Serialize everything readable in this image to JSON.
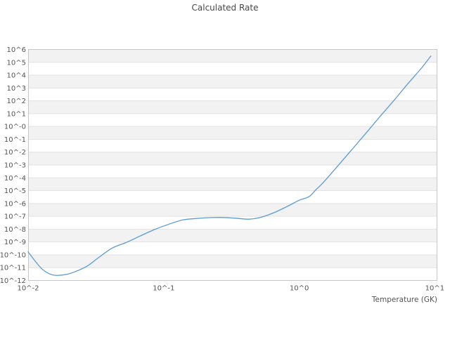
{
  "colors": {
    "line": "#5b9bd5",
    "band": "#f2f2f2",
    "grid": "#e2e2e2",
    "frame": "#c6c6c6",
    "text": "#545454"
  },
  "chart_data": {
    "type": "line",
    "title": "Calculated Rate",
    "xlabel": "Temperature (GK)",
    "ylabel": "",
    "x_scale": "log",
    "y_scale": "log",
    "xlim": [
      0.01,
      10.2
    ],
    "ylim": [
      1e-12,
      1000000.0
    ],
    "grid": "horizontal gridlines with alternating gray/white decade bands, no vertical gridlines",
    "legend": "none",
    "x_tick_labels": [
      "10^-2",
      "10^-1",
      "10^0",
      "10^1"
    ],
    "x_tick_values": [
      0.01,
      0.1,
      1,
      10
    ],
    "y_tick_labels": [
      "10^6",
      "10^5",
      "10^4",
      "10^3",
      "10^2",
      "10^1",
      "10^-0",
      "10^-1",
      "10^-2",
      "10^-3",
      "10^-4",
      "10^-5",
      "10^-6",
      "10^-7",
      "10^-8",
      "10^-9",
      "10^-10",
      "10^-11",
      "10^-12"
    ],
    "y_tick_exponents": [
      6,
      5,
      4,
      3,
      2,
      1,
      0,
      -1,
      -2,
      -3,
      -4,
      -5,
      -6,
      -7,
      -8,
      -9,
      -10,
      -11,
      -12
    ],
    "series": [
      {
        "name": "calculated-rate",
        "color": "#5b9bd5",
        "points": [
          [
            0.01,
            1.7e-10
          ],
          [
            0.0113,
            3.1e-11
          ],
          [
            0.0127,
            7.7e-12
          ],
          [
            0.0143,
            3.4e-12
          ],
          [
            0.0161,
            2.5e-12
          ],
          [
            0.0193,
            3e-12
          ],
          [
            0.023,
            5.6e-12
          ],
          [
            0.0275,
            1.4e-11
          ],
          [
            0.0329,
            5.8e-11
          ],
          [
            0.0418,
            3.4e-10
          ],
          [
            0.0531,
            9.3e-10
          ],
          [
            0.0674,
            3e-09
          ],
          [
            0.0857,
            9.4e-09
          ],
          [
            0.109,
            2.4e-08
          ],
          [
            0.138,
            5.2e-08
          ],
          [
            0.175,
            6.8e-08
          ],
          [
            0.222,
            8e-08
          ],
          [
            0.281,
            8.1e-08
          ],
          [
            0.357,
            6.8e-08
          ],
          [
            0.428,
            6e-08
          ],
          [
            0.512,
            8e-08
          ],
          [
            0.649,
            1.9e-07
          ],
          [
            0.823,
            6.2e-07
          ],
          [
            1.0,
            1.8e-06
          ],
          [
            1.18,
            3.4e-06
          ],
          [
            1.33,
            1.2e-05
          ],
          [
            1.5,
            4.2e-05
          ],
          [
            1.91,
            0.00077
          ],
          [
            2.42,
            0.014
          ],
          [
            3.07,
            0.26
          ],
          [
            3.9,
            5.3
          ],
          [
            4.95,
            96
          ],
          [
            6.29,
            2000.0
          ],
          [
            7.98,
            36000.0
          ],
          [
            9.35,
            310000.0
          ]
        ]
      }
    ]
  }
}
